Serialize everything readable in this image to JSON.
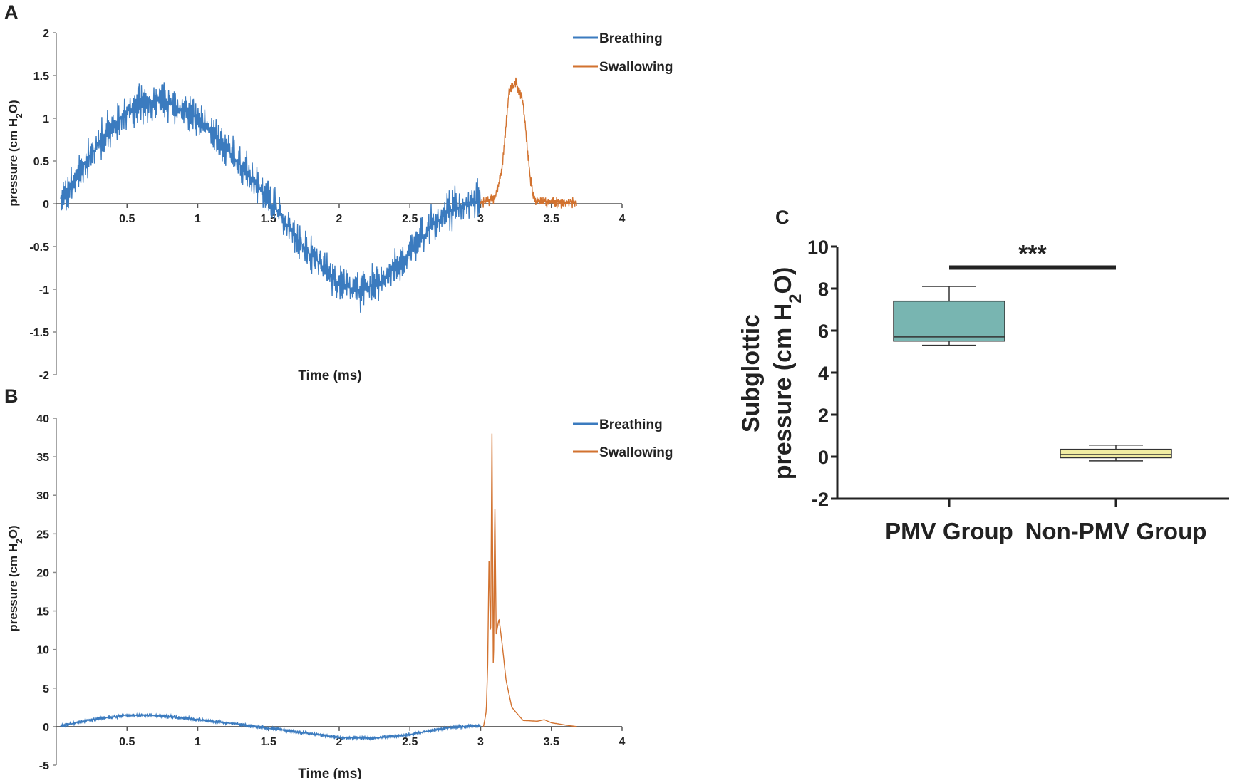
{
  "chart_data": [
    {
      "panel": "A",
      "type": "line",
      "xlabel": "Time (ms)",
      "ylabel": {
        "pre": "pressure (cm H",
        "sub": "2",
        "post": "O)"
      },
      "xlim": [
        0,
        4
      ],
      "ylim": [
        -2,
        2
      ],
      "xticks": [
        "0.5",
        "1",
        "1.5",
        "2",
        "2.5",
        "3",
        "3.5",
        "4"
      ],
      "yticks": [
        "2",
        "1.5",
        "1",
        "0.5",
        "0",
        "-0.5",
        "-1",
        "-1.5",
        "-2"
      ],
      "legend_position": "top-right",
      "series": [
        {
          "name": "Breathing",
          "color": "#3b7bbf",
          "noise": 0.28,
          "x": [
            0.03,
            0.25,
            0.5,
            0.75,
            1.0,
            1.25,
            1.5,
            1.75,
            2.0,
            2.15,
            2.3,
            2.5,
            2.75,
            3.0
          ],
          "y": [
            0.05,
            0.6,
            1.1,
            1.22,
            1.0,
            0.55,
            0.05,
            -0.5,
            -0.95,
            -1.02,
            -0.9,
            -0.55,
            -0.1,
            0.05
          ]
        },
        {
          "name": "Swallowing",
          "color": "#d2722f",
          "noise": 0.08,
          "x": [
            3.0,
            3.1,
            3.15,
            3.2,
            3.25,
            3.3,
            3.35,
            3.38,
            3.5,
            3.68
          ],
          "y": [
            0.02,
            0.05,
            0.4,
            1.3,
            1.42,
            1.2,
            0.3,
            0.03,
            0.02,
            0.02
          ]
        }
      ]
    },
    {
      "panel": "B",
      "type": "line",
      "xlabel": "Time (ms)",
      "ylabel": {
        "pre": "pressure (cm H",
        "sub": "2",
        "post": "O)"
      },
      "xlim": [
        0,
        4
      ],
      "ylim": [
        -5,
        40
      ],
      "xticks": [
        "0.5",
        "1",
        "1.5",
        "2",
        "2.5",
        "3",
        "3.5",
        "4"
      ],
      "yticks": [
        "40",
        "35",
        "30",
        "25",
        "20",
        "15",
        "10",
        "5",
        "0",
        "-5"
      ],
      "legend_position": "top-right",
      "series": [
        {
          "name": "Breathing",
          "color": "#3b7bbf",
          "noise": 0.3,
          "x": [
            0.03,
            0.25,
            0.5,
            0.75,
            1.0,
            1.25,
            1.5,
            1.75,
            2.0,
            2.25,
            2.5,
            2.75,
            3.0
          ],
          "y": [
            0.1,
            0.9,
            1.5,
            1.4,
            0.9,
            0.4,
            -0.2,
            -0.8,
            -1.4,
            -1.5,
            -1.0,
            -0.2,
            0.2
          ]
        },
        {
          "name": "Swallowing",
          "color": "#d2722f",
          "noise": 0.0,
          "x": [
            3.02,
            3.04,
            3.05,
            3.06,
            3.07,
            3.08,
            3.09,
            3.1,
            3.11,
            3.13,
            3.15,
            3.18,
            3.22,
            3.3,
            3.4,
            3.45,
            3.5,
            3.6,
            3.68
          ],
          "y": [
            0,
            2,
            8,
            23,
            10,
            38,
            5,
            30,
            12,
            14,
            11,
            6,
            2.5,
            0.8,
            0.7,
            0.9,
            0.5,
            0.2,
            0
          ]
        }
      ]
    },
    {
      "panel": "C",
      "type": "box",
      "ylabel_line1": "Subglottic",
      "ylabel": {
        "pre": "pressure (cm H",
        "sub": "2",
        "post": "O)"
      },
      "ylim": [
        -2,
        10
      ],
      "yticks": [
        "10",
        "8",
        "6",
        "4",
        "2",
        "0",
        "-2"
      ],
      "categories": [
        "PMV Group",
        "Non-PMV Group"
      ],
      "boxes": [
        {
          "name": "PMV Group",
          "color": "#78b5b1",
          "min": 5.3,
          "q1": 5.5,
          "median": 5.7,
          "q3": 7.4,
          "max": 8.1
        },
        {
          "name": "Non-PMV Group",
          "color": "#f0eca2",
          "min": -0.2,
          "q1": -0.05,
          "median": 0.1,
          "q3": 0.35,
          "max": 0.55
        }
      ],
      "significance": {
        "label": "***",
        "y": 9
      }
    }
  ],
  "labels": {
    "A": "A",
    "B": "B",
    "C": "C"
  }
}
